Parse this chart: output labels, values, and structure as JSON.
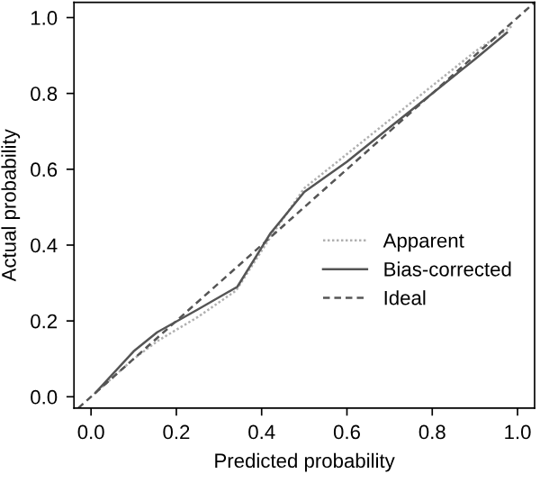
{
  "chart_data": {
    "type": "line",
    "xlabel": "Predicted probability",
    "ylabel": "Actual probability",
    "xlim": [
      -0.04,
      1.04
    ],
    "ylim": [
      -0.03,
      1.04
    ],
    "xticks": [
      {
        "value": 0,
        "label": "0.0"
      },
      0.2,
      0.4,
      0.6,
      0.8,
      {
        "value": 1,
        "label": "1.0"
      }
    ],
    "yticks": [
      {
        "value": 0,
        "label": "0.0"
      },
      0.2,
      0.4,
      0.6,
      0.8,
      {
        "value": 1,
        "label": "1.0"
      }
    ],
    "grid": false,
    "legend": "bottom right",
    "marker": "none",
    "series": [
      {
        "name": "Apparent",
        "color": "#b0b0b0",
        "line_style": "dotted",
        "x": [
          0.01,
          0.1,
          0.16,
          0.25,
          0.34,
          0.42,
          0.5,
          0.6,
          0.7,
          0.8,
          0.9,
          0.99
        ],
        "values": [
          0.01,
          0.1,
          0.15,
          0.21,
          0.28,
          0.42,
          0.55,
          0.64,
          0.73,
          0.82,
          0.91,
          0.98
        ]
      },
      {
        "name": "Bias-corrected",
        "color": "#555555",
        "line_style": "solid",
        "x": [
          0.01,
          0.1,
          0.155,
          0.25,
          0.343,
          0.42,
          0.5,
          0.6,
          0.7,
          0.8,
          0.9,
          0.975
        ],
        "values": [
          0.01,
          0.12,
          0.17,
          0.23,
          0.29,
          0.43,
          0.54,
          0.62,
          0.71,
          0.8,
          0.89,
          0.96
        ]
      },
      {
        "name": "Ideal",
        "color": "#555555",
        "line_style": "dashed",
        "x": [
          -0.03,
          1.04
        ],
        "values": [
          -0.03,
          1.04
        ]
      }
    ]
  }
}
